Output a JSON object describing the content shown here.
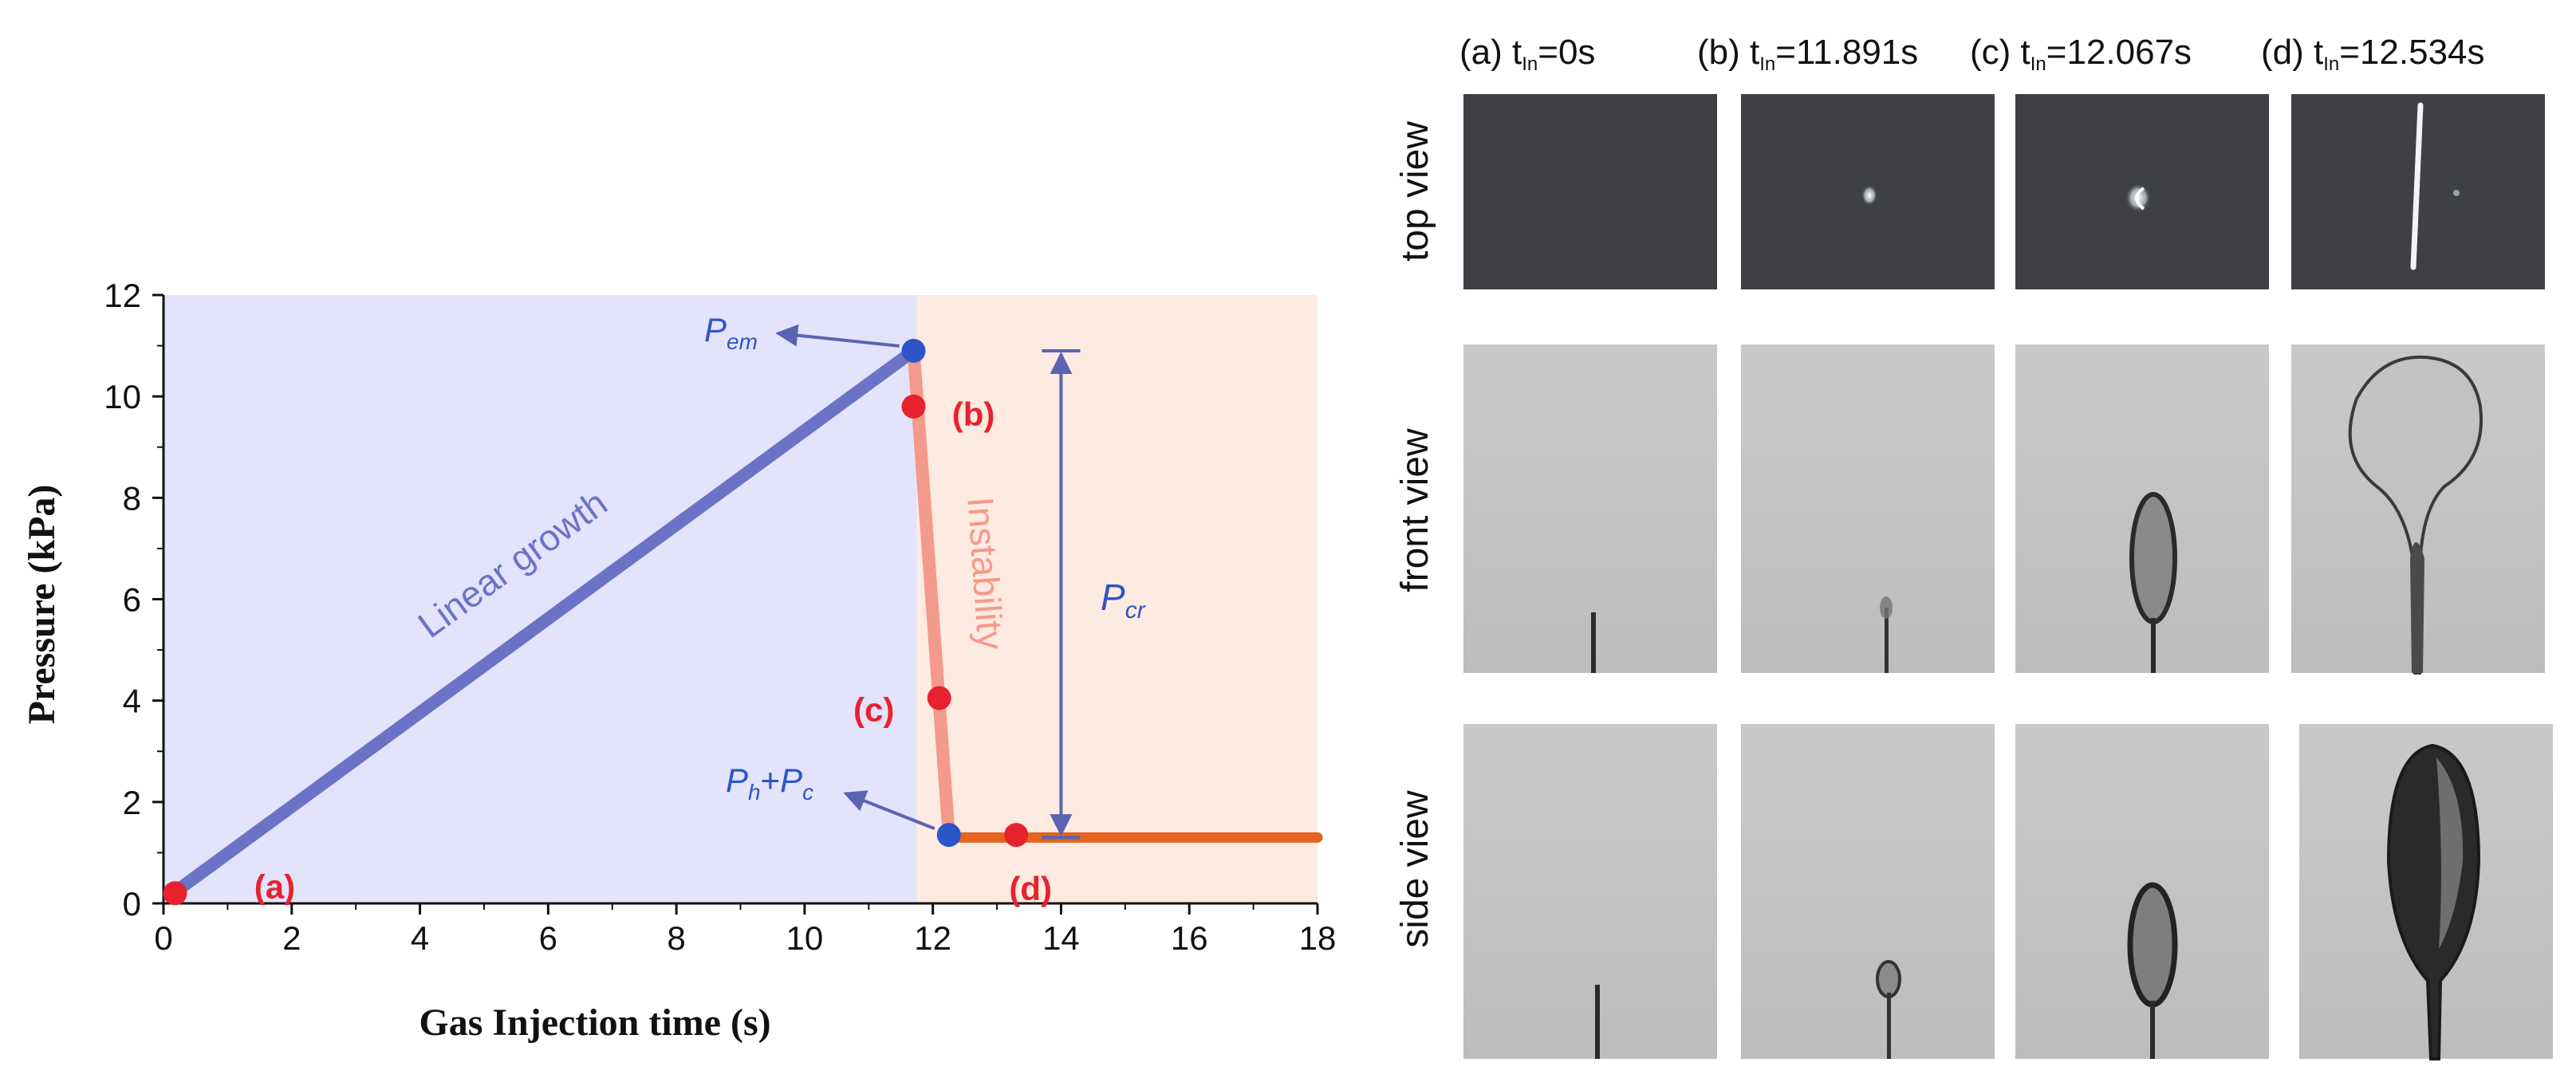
{
  "chart_data": {
    "type": "line",
    "xlabel": "Gas Injection time (s)",
    "ylabel": "Pressure (kPa)",
    "xlim": [
      0,
      18
    ],
    "ylim": [
      0,
      12
    ],
    "x_ticks": [
      "0",
      "2",
      "4",
      "6",
      "8",
      "10",
      "12",
      "14",
      "16",
      "18"
    ],
    "y_ticks": [
      "0",
      "2",
      "4",
      "6",
      "8",
      "10",
      "12"
    ],
    "regions": [
      {
        "x0": 0,
        "x1": 11.75,
        "color": "#e3e3fb"
      },
      {
        "x0": 11.75,
        "x1": 18,
        "color": "#fdeae0"
      }
    ],
    "series": [
      {
        "name": "Linear growth",
        "color": "#6b73c6",
        "points": [
          [
            0.1,
            0.15
          ],
          [
            11.7,
            10.9
          ]
        ]
      },
      {
        "name": "Instability",
        "color": "#f39a8c",
        "points": [
          [
            11.7,
            10.9
          ],
          [
            12.25,
            1.35
          ]
        ]
      },
      {
        "color": "#e4641e",
        "points": [
          [
            12.25,
            1.3
          ],
          [
            18,
            1.3
          ]
        ]
      }
    ],
    "highlight_points": [
      {
        "label": "(a)",
        "x": 0.18,
        "y": 0.2,
        "color": "#e8212e"
      },
      {
        "label": "(b)",
        "x": 11.7,
        "y": 9.8,
        "color": "#e8212e"
      },
      {
        "label": "(c)",
        "x": 12.1,
        "y": 4.05,
        "color": "#e8212e"
      },
      {
        "label": "(d)",
        "x": 13.3,
        "y": 1.35,
        "color": "#e8212e"
      }
    ],
    "key_points": [
      {
        "label": "P_em",
        "x": 11.7,
        "y": 10.9,
        "color": "#2b55c8"
      },
      {
        "label": "P_h+P_c",
        "x": 12.25,
        "y": 1.35,
        "color": "#2b55c8"
      }
    ],
    "annotations": {
      "linear_growth": "Linear growth",
      "instability": "Instability",
      "pcr": {
        "label": "P_cr",
        "x": 14,
        "y_top": 10.9,
        "y_bottom": 1.3
      }
    }
  },
  "labels": {
    "pem_main": "P",
    "pem_sub": "em",
    "ph_main": "P",
    "ph_sub": "h",
    "plus": "+",
    "pc_main": "P",
    "pc_sub": "c",
    "pcr_main": "P",
    "pcr_sub": "cr"
  },
  "panels": {
    "columns": [
      {
        "prefix": "(a) t",
        "sub": "In",
        "suffix": "=0s"
      },
      {
        "prefix": "(b) t",
        "sub": "In",
        "suffix": "=11.891s"
      },
      {
        "prefix": "(c) t",
        "sub": "In",
        "suffix": "=12.067s"
      },
      {
        "prefix": "(d) t",
        "sub": "In",
        "suffix": "=12.534s"
      }
    ],
    "rows": [
      "top view",
      "front view",
      "side view"
    ]
  }
}
